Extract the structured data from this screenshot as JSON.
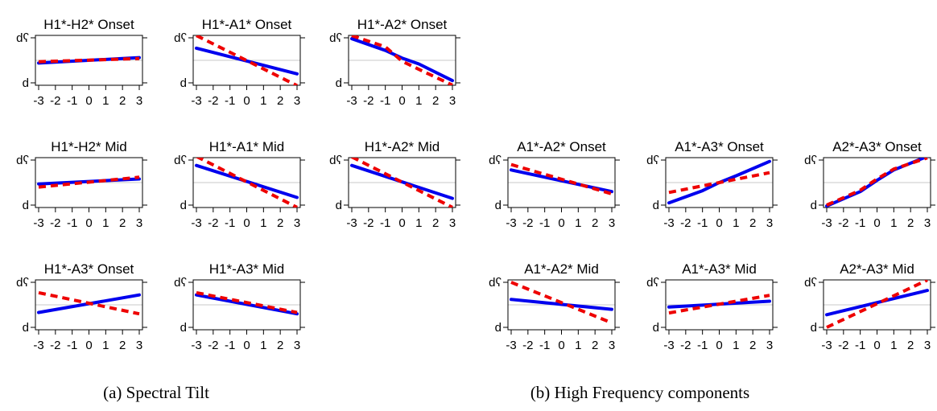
{
  "captions": {
    "a": "(a) Spectral Tilt",
    "b": "(b) High Frequency components"
  },
  "colors": {
    "series_solid": "#0000ee",
    "series_dashed": "#ee0000",
    "zero_line": "#c8c8c8",
    "axis": "#000000"
  },
  "chart_data": [
    {
      "type": "line",
      "title": "H1*-H2* Onset",
      "x": [
        -3,
        3
      ],
      "xticks": [
        "-3",
        "-2",
        "-1",
        "0",
        "1",
        "2",
        "3"
      ],
      "yticks": [
        "d",
        "dʕ"
      ],
      "ylim": [
        0,
        1
      ],
      "series": [
        {
          "style": "solid",
          "x": [
            -3,
            3
          ],
          "y": [
            0.44,
            0.56
          ]
        },
        {
          "style": "dashed",
          "x": [
            -3,
            3
          ],
          "y": [
            0.47,
            0.54
          ]
        }
      ]
    },
    {
      "type": "line",
      "title": "H1*-A1* Onset",
      "x": [
        -3,
        3
      ],
      "xticks": [
        "-3",
        "-2",
        "-1",
        "0",
        "1",
        "2",
        "3"
      ],
      "yticks": [
        "d",
        "dʕ"
      ],
      "ylim": [
        0,
        1
      ],
      "series": [
        {
          "style": "solid",
          "x": [
            -3,
            3
          ],
          "y": [
            0.77,
            0.2
          ]
        },
        {
          "style": "dashed",
          "x": [
            -3,
            3
          ],
          "y": [
            1.05,
            -0.06
          ]
        }
      ]
    },
    {
      "type": "line",
      "title": "H1*-A2* Onset",
      "x": [
        -3,
        3
      ],
      "xticks": [
        "-3",
        "-2",
        "-1",
        "0",
        "1",
        "2",
        "3"
      ],
      "yticks": [
        "d",
        "dʕ"
      ],
      "ylim": [
        0,
        1
      ],
      "series": [
        {
          "style": "solid",
          "x": [
            -3,
            -1,
            0,
            1,
            3
          ],
          "y": [
            0.98,
            0.72,
            0.55,
            0.42,
            0.05
          ]
        },
        {
          "style": "dashed",
          "x": [
            -3,
            -1,
            0,
            1,
            3
          ],
          "y": [
            1.05,
            0.8,
            0.48,
            0.3,
            -0.05
          ]
        }
      ]
    },
    {
      "type": "line",
      "title": "H1*-H2* Mid",
      "x": [
        -3,
        3
      ],
      "xticks": [
        "-3",
        "-2",
        "-1",
        "0",
        "1",
        "2",
        "3"
      ],
      "yticks": [
        "d",
        "dʕ"
      ],
      "ylim": [
        0,
        1
      ],
      "series": [
        {
          "style": "solid",
          "x": [
            -3,
            3
          ],
          "y": [
            0.47,
            0.58
          ]
        },
        {
          "style": "dashed",
          "x": [
            -3,
            3
          ],
          "y": [
            0.4,
            0.62
          ]
        }
      ]
    },
    {
      "type": "line",
      "title": "H1*-A1* Mid",
      "x": [
        -3,
        3
      ],
      "xticks": [
        "-3",
        "-2",
        "-1",
        "0",
        "1",
        "2",
        "3"
      ],
      "yticks": [
        "d",
        "dʕ"
      ],
      "ylim": [
        0,
        1
      ],
      "series": [
        {
          "style": "solid",
          "x": [
            -3,
            3
          ],
          "y": [
            0.88,
            0.17
          ]
        },
        {
          "style": "dashed",
          "x": [
            -3,
            3
          ],
          "y": [
            1.08,
            -0.05
          ]
        }
      ]
    },
    {
      "type": "line",
      "title": "H1*-A2* Mid",
      "x": [
        -3,
        3
      ],
      "xticks": [
        "-3",
        "-2",
        "-1",
        "0",
        "1",
        "2",
        "3"
      ],
      "yticks": [
        "d",
        "dʕ"
      ],
      "ylim": [
        0,
        1
      ],
      "series": [
        {
          "style": "solid",
          "x": [
            -3,
            3
          ],
          "y": [
            0.88,
            0.15
          ]
        },
        {
          "style": "dashed",
          "x": [
            -3,
            3
          ],
          "y": [
            1.07,
            -0.05
          ]
        }
      ]
    },
    {
      "type": "line",
      "title": "A1*-A2* Onset",
      "x": [
        -3,
        3
      ],
      "xticks": [
        "-3",
        "-2",
        "-1",
        "0",
        "1",
        "2",
        "3"
      ],
      "yticks": [
        "d",
        "dʕ"
      ],
      "ylim": [
        0,
        1
      ],
      "series": [
        {
          "style": "solid",
          "x": [
            -3,
            3
          ],
          "y": [
            0.78,
            0.3
          ]
        },
        {
          "style": "dashed",
          "x": [
            -3,
            3
          ],
          "y": [
            0.9,
            0.25
          ]
        }
      ]
    },
    {
      "type": "line",
      "title": "A1*-A3* Onset",
      "x": [
        -3,
        3
      ],
      "xticks": [
        "-3",
        "-2",
        "-1",
        "0",
        "1",
        "2",
        "3"
      ],
      "yticks": [
        "d",
        "dʕ"
      ],
      "ylim": [
        0,
        1
      ],
      "series": [
        {
          "style": "solid",
          "x": [
            -3,
            -1,
            0,
            1,
            3
          ],
          "y": [
            0.05,
            0.32,
            0.5,
            0.65,
            0.97
          ]
        },
        {
          "style": "dashed",
          "x": [
            -3,
            3
          ],
          "y": [
            0.28,
            0.72
          ]
        }
      ]
    },
    {
      "type": "line",
      "title": "A2*-A3* Onset",
      "x": [
        -3,
        3
      ],
      "xticks": [
        "-3",
        "-2",
        "-1",
        "0",
        "1",
        "2",
        "3"
      ],
      "yticks": [
        "d",
        "dʕ"
      ],
      "ylim": [
        0,
        1
      ],
      "series": [
        {
          "style": "solid",
          "x": [
            -3,
            -1,
            0,
            1,
            3
          ],
          "y": [
            -0.02,
            0.3,
            0.55,
            0.78,
            1.08
          ]
        },
        {
          "style": "dashed",
          "x": [
            -3,
            -1,
            0,
            1,
            3
          ],
          "y": [
            0.0,
            0.33,
            0.58,
            0.8,
            1.05
          ]
        }
      ]
    },
    {
      "type": "line",
      "title": "H1*-A3* Onset",
      "x": [
        -3,
        3
      ],
      "xticks": [
        "-3",
        "-2",
        "-1",
        "0",
        "1",
        "2",
        "3"
      ],
      "yticks": [
        "d",
        "dʕ"
      ],
      "ylim": [
        0,
        1
      ],
      "series": [
        {
          "style": "solid",
          "x": [
            -3,
            3
          ],
          "y": [
            0.33,
            0.72
          ]
        },
        {
          "style": "dashed",
          "x": [
            -3,
            3
          ],
          "y": [
            0.77,
            0.3
          ]
        }
      ]
    },
    {
      "type": "line",
      "title": "H1*-A3* Mid",
      "x": [
        -3,
        3
      ],
      "xticks": [
        "-3",
        "-2",
        "-1",
        "0",
        "1",
        "2",
        "3"
      ],
      "yticks": [
        "d",
        "dʕ"
      ],
      "ylim": [
        0,
        1
      ],
      "series": [
        {
          "style": "solid",
          "x": [
            -3,
            3
          ],
          "y": [
            0.72,
            0.3
          ]
        },
        {
          "style": "dashed",
          "x": [
            -3,
            3
          ],
          "y": [
            0.77,
            0.33
          ]
        }
      ]
    },
    {
      "type": "line",
      "title": "A1*-A2* Mid",
      "x": [
        -3,
        3
      ],
      "xticks": [
        "-3",
        "-2",
        "-1",
        "0",
        "1",
        "2",
        "3"
      ],
      "yticks": [
        "d",
        "dʕ"
      ],
      "ylim": [
        0,
        1
      ],
      "series": [
        {
          "style": "solid",
          "x": [
            -3,
            3
          ],
          "y": [
            0.62,
            0.4
          ]
        },
        {
          "style": "dashed",
          "x": [
            -3,
            3
          ],
          "y": [
            1.0,
            0.1
          ]
        }
      ]
    },
    {
      "type": "line",
      "title": "A1*-A3* Mid",
      "x": [
        -3,
        3
      ],
      "xticks": [
        "-3",
        "-2",
        "-1",
        "0",
        "1",
        "2",
        "3"
      ],
      "yticks": [
        "d",
        "dʕ"
      ],
      "ylim": [
        0,
        1
      ],
      "series": [
        {
          "style": "solid",
          "x": [
            -3,
            3
          ],
          "y": [
            0.45,
            0.58
          ]
        },
        {
          "style": "dashed",
          "x": [
            -3,
            3
          ],
          "y": [
            0.32,
            0.71
          ]
        }
      ]
    },
    {
      "type": "line",
      "title": "A2*-A3* Mid",
      "x": [
        -3,
        3
      ],
      "xticks": [
        "-3",
        "-2",
        "-1",
        "0",
        "1",
        "2",
        "3"
      ],
      "yticks": [
        "d",
        "dʕ"
      ],
      "ylim": [
        0,
        1
      ],
      "series": [
        {
          "style": "solid",
          "x": [
            -3,
            3
          ],
          "y": [
            0.28,
            0.82
          ]
        },
        {
          "style": "dashed",
          "x": [
            -3,
            3
          ],
          "y": [
            0.0,
            1.05
          ]
        }
      ]
    }
  ]
}
